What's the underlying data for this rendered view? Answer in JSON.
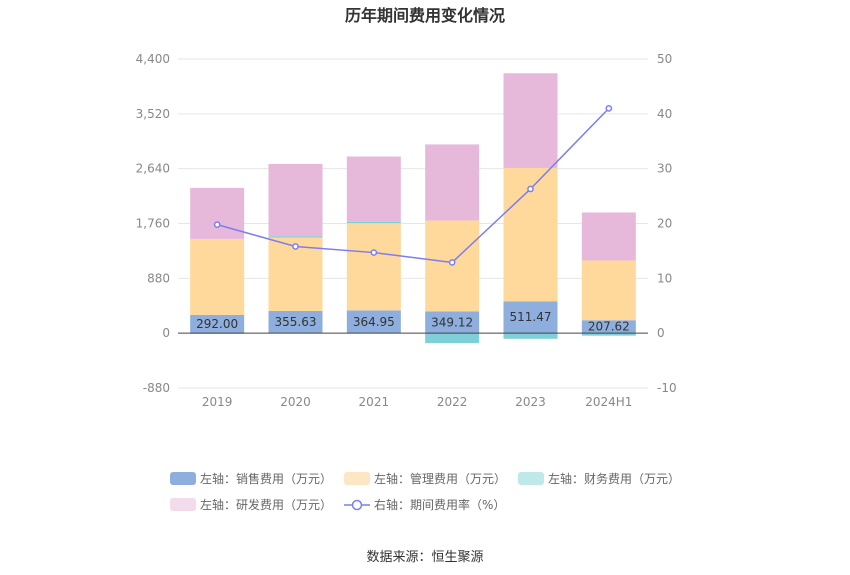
{
  "chart_data": {
    "type": "bar",
    "title": "历年期间费用变化情况",
    "categories": [
      "2019",
      "2020",
      "2021",
      "2022",
      "2023",
      "2024H1"
    ],
    "stacked": true,
    "left_axis": {
      "min": -880,
      "max": 4400,
      "ticks": [
        -880,
        0,
        880,
        1760,
        2640,
        3520,
        4400
      ],
      "tick_labels": [
        "-880",
        "0",
        "880",
        "1,760",
        "2,640",
        "3,520",
        "4,400"
      ]
    },
    "right_axis": {
      "min": -10,
      "max": 50,
      "ticks": [
        -10,
        0,
        10,
        20,
        30,
        40,
        50
      ],
      "tick_labels": [
        "-10",
        "0",
        "10",
        "20",
        "30",
        "40",
        "50"
      ]
    },
    "grid": true,
    "legend_position": "bottom",
    "series": [
      {
        "name": "左轴：销售费用（万元）",
        "axis": "left",
        "type": "bar",
        "color": "#8eaedd",
        "legend_color": "#8eaedd",
        "values": [
          292.0,
          355.63,
          364.95,
          349.12,
          511.47,
          207.62
        ],
        "labels": [
          "292.00",
          "355.63",
          "364.95",
          "349.12",
          "511.47",
          "207.62"
        ]
      },
      {
        "name": "左轴：管理费用（万元）",
        "axis": "left",
        "type": "bar",
        "color": "#ffd99b",
        "legend_color": "#fde6c4",
        "values": [
          1220,
          1180,
          1400,
          1460,
          2140,
          960
        ]
      },
      {
        "name": "左轴：财务费用（万元）",
        "axis": "left",
        "type": "bar",
        "color": "#7fcfd6",
        "legend_color": "#bfe8ea",
        "values": [
          -10,
          20,
          20,
          -160,
          -90,
          -40
        ]
      },
      {
        "name": "左轴：研发费用（万元）",
        "axis": "left",
        "type": "bar",
        "color": "#e6b9da",
        "legend_color": "#f2dcec",
        "values": [
          820,
          1160,
          1050,
          1220,
          1520,
          770
        ]
      },
      {
        "name": "右轴：期间费用率（%）",
        "axis": "right",
        "type": "line",
        "color": "#7b7ef0",
        "values": [
          19.8,
          15.8,
          14.7,
          12.9,
          26.3,
          41.0
        ]
      }
    ]
  },
  "source": "数据来源：恒生聚源"
}
